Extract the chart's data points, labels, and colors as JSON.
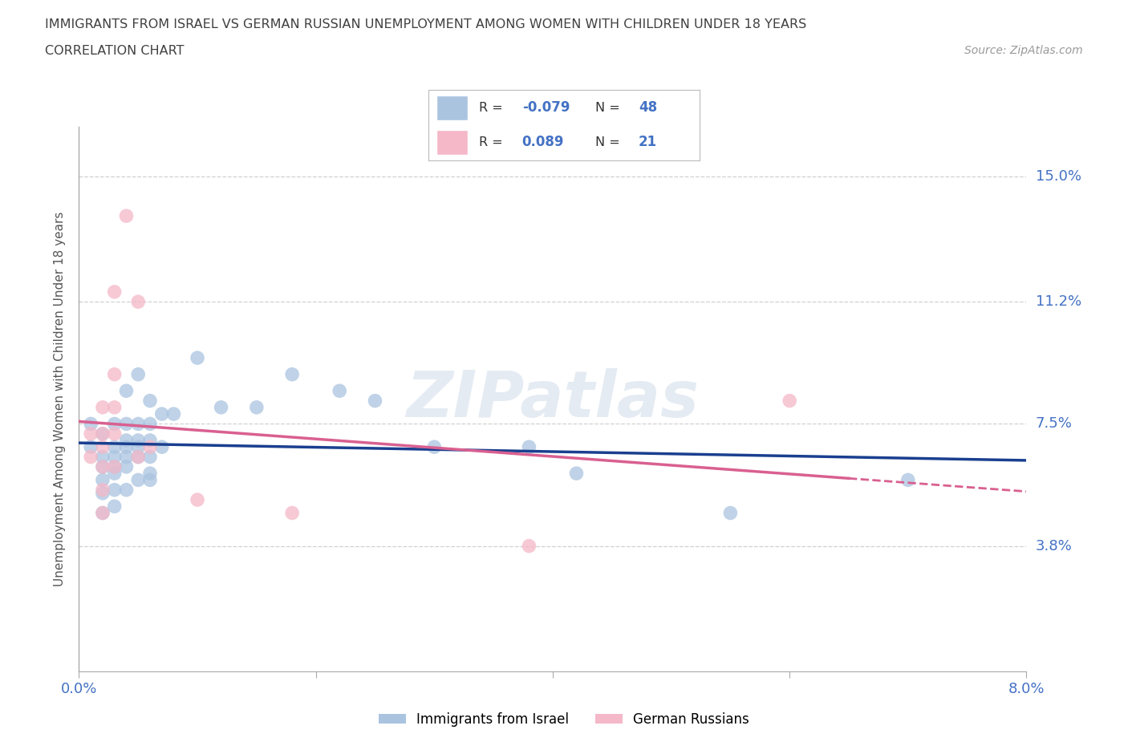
{
  "title_line1": "IMMIGRANTS FROM ISRAEL VS GERMAN RUSSIAN UNEMPLOYMENT AMONG WOMEN WITH CHILDREN UNDER 18 YEARS",
  "title_line2": "CORRELATION CHART",
  "source_text": "Source: ZipAtlas.com",
  "ylabel": "Unemployment Among Women with Children Under 18 years",
  "xlim": [
    0.0,
    0.08
  ],
  "ylim": [
    0.0,
    0.165
  ],
  "ytick_positions": [
    0.0,
    0.038,
    0.075,
    0.112,
    0.15
  ],
  "ytick_labels": [
    "",
    "3.8%",
    "7.5%",
    "11.2%",
    "15.0%"
  ],
  "xtick_positions": [
    0.0,
    0.02,
    0.04,
    0.06,
    0.08
  ],
  "xtick_labels": [
    "0.0%",
    "",
    "",
    "",
    "8.0%"
  ],
  "israel_color": "#aac4e0",
  "german_russian_color": "#f4b8c8",
  "israel_line_color": "#1a3f8f",
  "german_russian_line_color": "#d96090",
  "legend_R_israel": "-0.079",
  "legend_N_israel": "48",
  "legend_R_german": "0.089",
  "legend_N_german": "21",
  "legend_label_israel": "Immigrants from Israel",
  "legend_label_german": "German Russians",
  "watermark": "ZIPatlas",
  "israel_points": [
    [
      0.001,
      0.075
    ],
    [
      0.001,
      0.068
    ],
    [
      0.002,
      0.072
    ],
    [
      0.002,
      0.065
    ],
    [
      0.002,
      0.062
    ],
    [
      0.002,
      0.058
    ],
    [
      0.002,
      0.054
    ],
    [
      0.002,
      0.048
    ],
    [
      0.003,
      0.075
    ],
    [
      0.003,
      0.068
    ],
    [
      0.003,
      0.065
    ],
    [
      0.003,
      0.062
    ],
    [
      0.003,
      0.06
    ],
    [
      0.003,
      0.055
    ],
    [
      0.003,
      0.05
    ],
    [
      0.004,
      0.085
    ],
    [
      0.004,
      0.075
    ],
    [
      0.004,
      0.07
    ],
    [
      0.004,
      0.068
    ],
    [
      0.004,
      0.065
    ],
    [
      0.004,
      0.062
    ],
    [
      0.004,
      0.055
    ],
    [
      0.005,
      0.09
    ],
    [
      0.005,
      0.075
    ],
    [
      0.005,
      0.07
    ],
    [
      0.005,
      0.068
    ],
    [
      0.005,
      0.065
    ],
    [
      0.005,
      0.058
    ],
    [
      0.006,
      0.082
    ],
    [
      0.006,
      0.075
    ],
    [
      0.006,
      0.07
    ],
    [
      0.006,
      0.065
    ],
    [
      0.006,
      0.06
    ],
    [
      0.006,
      0.058
    ],
    [
      0.007,
      0.078
    ],
    [
      0.007,
      0.068
    ],
    [
      0.008,
      0.078
    ],
    [
      0.01,
      0.095
    ],
    [
      0.012,
      0.08
    ],
    [
      0.015,
      0.08
    ],
    [
      0.018,
      0.09
    ],
    [
      0.022,
      0.085
    ],
    [
      0.025,
      0.082
    ],
    [
      0.03,
      0.068
    ],
    [
      0.038,
      0.068
    ],
    [
      0.042,
      0.06
    ],
    [
      0.055,
      0.048
    ],
    [
      0.07,
      0.058
    ]
  ],
  "german_russian_points": [
    [
      0.001,
      0.072
    ],
    [
      0.001,
      0.065
    ],
    [
      0.002,
      0.08
    ],
    [
      0.002,
      0.072
    ],
    [
      0.002,
      0.068
    ],
    [
      0.002,
      0.062
    ],
    [
      0.002,
      0.055
    ],
    [
      0.002,
      0.048
    ],
    [
      0.003,
      0.115
    ],
    [
      0.003,
      0.09
    ],
    [
      0.003,
      0.08
    ],
    [
      0.003,
      0.072
    ],
    [
      0.003,
      0.062
    ],
    [
      0.004,
      0.138
    ],
    [
      0.005,
      0.112
    ],
    [
      0.005,
      0.065
    ],
    [
      0.006,
      0.068
    ],
    [
      0.01,
      0.052
    ],
    [
      0.018,
      0.048
    ],
    [
      0.038,
      0.038
    ],
    [
      0.06,
      0.082
    ]
  ],
  "bg_color": "#ffffff",
  "grid_color": "#d0d0d0",
  "title_color": "#404040",
  "axis_label_color": "#555555",
  "right_tick_color": "#4472c4",
  "legend_text_color": "#4472c4"
}
